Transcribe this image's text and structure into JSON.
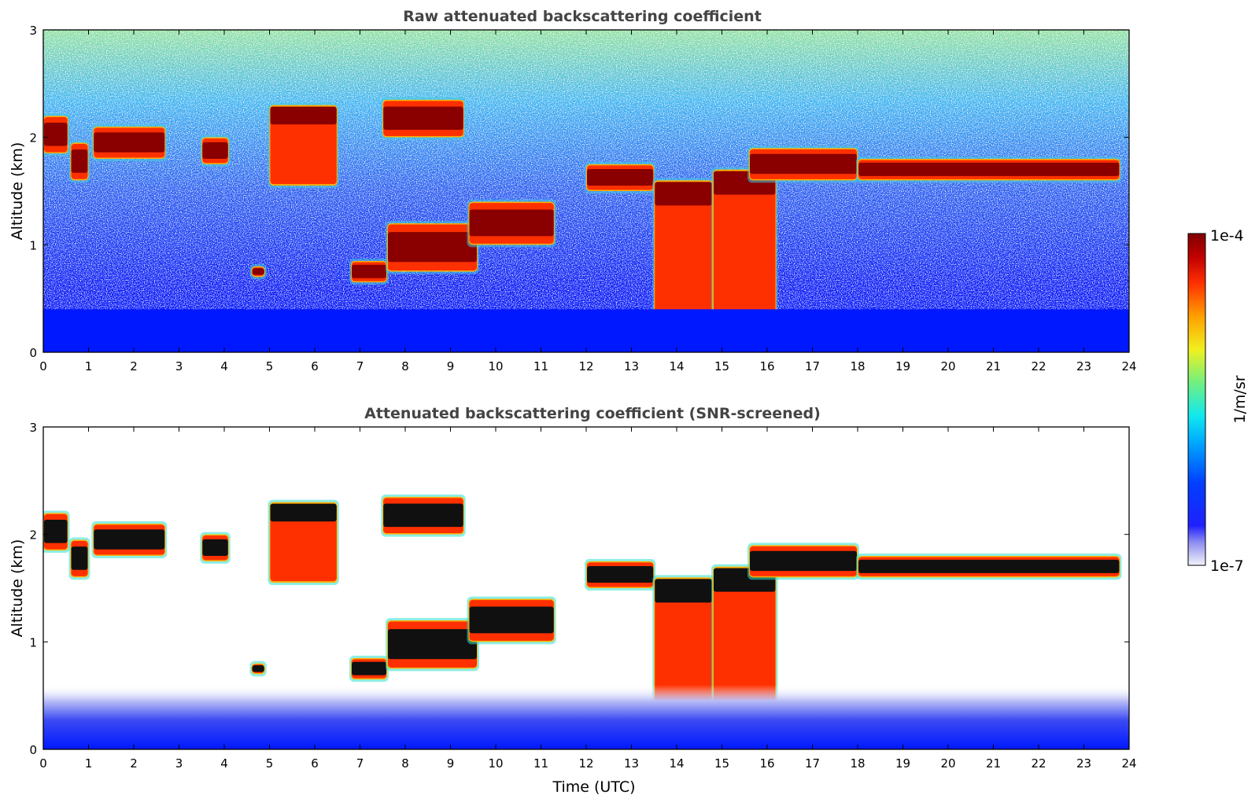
{
  "chart_data": [
    {
      "type": "heatmap",
      "title": "Raw attenuated backscattering coefficient",
      "xlabel": "",
      "ylabel": "Altitude (km)",
      "xlim": [
        0,
        24
      ],
      "ylim": [
        0,
        3
      ],
      "xticks": [
        "0",
        "1",
        "2",
        "3",
        "4",
        "5",
        "6",
        "7",
        "8",
        "9",
        "10",
        "11",
        "12",
        "13",
        "14",
        "15",
        "16",
        "17",
        "18",
        "19",
        "20",
        "21",
        "22",
        "23",
        "24"
      ],
      "yticks": [
        "0",
        "1",
        "2",
        "3"
      ],
      "grid": false,
      "screened": false,
      "layers": [
        {
          "kind": "cloud",
          "x": [
            0.0,
            0.55
          ],
          "y": [
            1.85,
            2.2
          ]
        },
        {
          "kind": "cloud",
          "x": [
            0.6,
            1.0
          ],
          "y": [
            1.6,
            1.95
          ]
        },
        {
          "kind": "cloud",
          "x": [
            1.1,
            2.7
          ],
          "y": [
            1.8,
            2.1
          ]
        },
        {
          "kind": "cloud",
          "x": [
            3.5,
            4.1
          ],
          "y": [
            1.75,
            2.0
          ]
        },
        {
          "kind": "cloud",
          "x": [
            5.0,
            6.5
          ],
          "y": [
            1.55,
            2.3
          ]
        },
        {
          "kind": "cloud",
          "x": [
            4.6,
            4.9
          ],
          "y": [
            0.7,
            0.8
          ]
        },
        {
          "kind": "cloud",
          "x": [
            6.8,
            7.6
          ],
          "y": [
            0.65,
            0.85
          ]
        },
        {
          "kind": "cloud",
          "x": [
            7.6,
            9.6
          ],
          "y": [
            0.75,
            1.2
          ]
        },
        {
          "kind": "cloud",
          "x": [
            9.4,
            11.3
          ],
          "y": [
            1.0,
            1.4
          ]
        },
        {
          "kind": "cloud",
          "x": [
            7.5,
            9.3
          ],
          "y": [
            2.0,
            2.35
          ]
        },
        {
          "kind": "cloud",
          "x": [
            12.0,
            13.5
          ],
          "y": [
            1.5,
            1.75
          ]
        },
        {
          "kind": "cloud",
          "x": [
            13.5,
            14.8
          ],
          "y": [
            0.0,
            1.6
          ]
        },
        {
          "kind": "cloud",
          "x": [
            14.8,
            16.2
          ],
          "y": [
            0.0,
            1.7
          ]
        },
        {
          "kind": "cloud",
          "x": [
            15.6,
            18.0
          ],
          "y": [
            1.6,
            1.9
          ]
        },
        {
          "kind": "cloud",
          "x": [
            18.0,
            23.8
          ],
          "y": [
            1.6,
            1.8
          ]
        },
        {
          "kind": "aerosol",
          "x": [
            0.0,
            24.0
          ],
          "y": [
            0.0,
            0.4
          ]
        }
      ]
    },
    {
      "type": "heatmap",
      "title": "Attenuated backscattering coefficient (SNR-screened)",
      "xlabel": "Time (UTC)",
      "ylabel": "Altitude (km)",
      "xlim": [
        0,
        24
      ],
      "ylim": [
        0,
        3
      ],
      "xticks": [
        "0",
        "1",
        "2",
        "3",
        "4",
        "5",
        "6",
        "7",
        "8",
        "9",
        "10",
        "11",
        "12",
        "13",
        "14",
        "15",
        "16",
        "17",
        "18",
        "19",
        "20",
        "21",
        "22",
        "23",
        "24"
      ],
      "yticks": [
        "0",
        "1",
        "2",
        "3"
      ],
      "grid": false,
      "screened": true,
      "layers": [
        {
          "kind": "cloud",
          "x": [
            0.0,
            0.55
          ],
          "y": [
            1.85,
            2.2
          ]
        },
        {
          "kind": "cloud",
          "x": [
            0.6,
            1.0
          ],
          "y": [
            1.6,
            1.95
          ]
        },
        {
          "kind": "cloud",
          "x": [
            1.1,
            2.7
          ],
          "y": [
            1.8,
            2.1
          ]
        },
        {
          "kind": "cloud",
          "x": [
            3.5,
            4.1
          ],
          "y": [
            1.75,
            2.0
          ]
        },
        {
          "kind": "cloud",
          "x": [
            5.0,
            6.5
          ],
          "y": [
            1.55,
            2.3
          ]
        },
        {
          "kind": "cloud",
          "x": [
            4.6,
            4.9
          ],
          "y": [
            0.7,
            0.8
          ]
        },
        {
          "kind": "cloud",
          "x": [
            6.8,
            7.6
          ],
          "y": [
            0.65,
            0.85
          ]
        },
        {
          "kind": "cloud",
          "x": [
            7.6,
            9.6
          ],
          "y": [
            0.75,
            1.2
          ]
        },
        {
          "kind": "cloud",
          "x": [
            9.4,
            11.3
          ],
          "y": [
            1.0,
            1.4
          ]
        },
        {
          "kind": "cloud",
          "x": [
            7.5,
            9.3
          ],
          "y": [
            2.0,
            2.35
          ]
        },
        {
          "kind": "cloud",
          "x": [
            12.0,
            13.5
          ],
          "y": [
            1.5,
            1.75
          ]
        },
        {
          "kind": "cloud",
          "x": [
            13.5,
            14.8
          ],
          "y": [
            0.0,
            1.6
          ]
        },
        {
          "kind": "cloud",
          "x": [
            14.8,
            16.2
          ],
          "y": [
            0.0,
            1.7
          ]
        },
        {
          "kind": "cloud",
          "x": [
            15.6,
            18.0
          ],
          "y": [
            1.6,
            1.9
          ]
        },
        {
          "kind": "cloud",
          "x": [
            18.0,
            23.8
          ],
          "y": [
            1.6,
            1.8
          ]
        },
        {
          "kind": "aerosol",
          "x": [
            0.0,
            24.0
          ],
          "y": [
            0.0,
            0.6
          ]
        }
      ]
    }
  ],
  "colorbar": {
    "label": "1/m/sr",
    "max_label": "1e-4",
    "min_label": "1e-7",
    "colormap": "jet",
    "scale": "log"
  }
}
